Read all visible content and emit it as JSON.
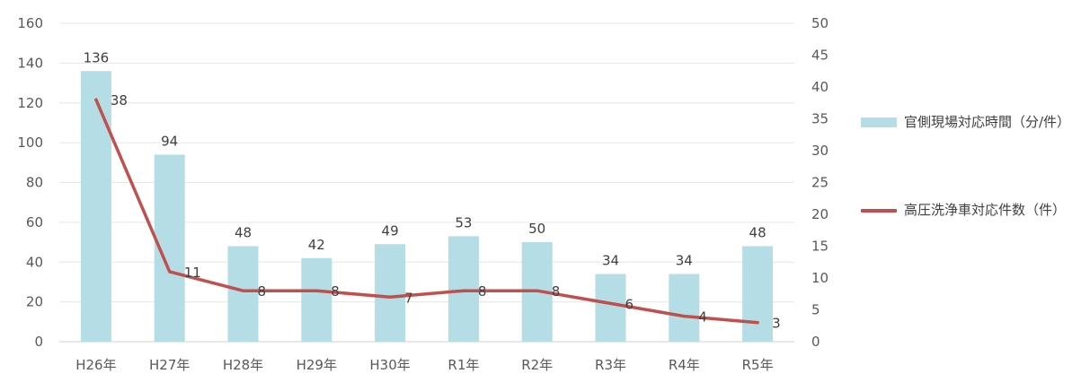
{
  "chart_data": {
    "type": "bar",
    "categories": [
      "H26年",
      "H27年",
      "H28年",
      "H29年",
      "H30年",
      "R1年",
      "R2年",
      "R3年",
      "R4年",
      "R5年"
    ],
    "series": [
      {
        "name": "官側現場対応時間（分/件）",
        "type": "bar",
        "axis": "left",
        "color": "#b4dde6",
        "values": [
          136,
          94,
          48,
          42,
          49,
          53,
          50,
          34,
          34,
          48
        ]
      },
      {
        "name": "高圧洗浄車対応件数（件）",
        "type": "line",
        "axis": "right",
        "color": "#c0504d",
        "values": [
          38,
          11,
          8,
          8,
          7,
          8,
          8,
          6,
          4,
          3
        ]
      }
    ],
    "left_axis": {
      "min": 0,
      "max": 160,
      "step": 20,
      "ticks": [
        "0",
        "20",
        "40",
        "60",
        "80",
        "100",
        "120",
        "140",
        "160"
      ]
    },
    "right_axis": {
      "min": 0,
      "max": 50,
      "step": 5,
      "ticks": [
        "0",
        "5",
        "10",
        "15",
        "20",
        "25",
        "30",
        "35",
        "40",
        "45",
        "50"
      ]
    },
    "grid": true,
    "legend_position": "right"
  },
  "legend": {
    "bar_label": "官側現場対応時間（分/件）",
    "line_label": "高圧洗浄車対応件数（件）"
  }
}
